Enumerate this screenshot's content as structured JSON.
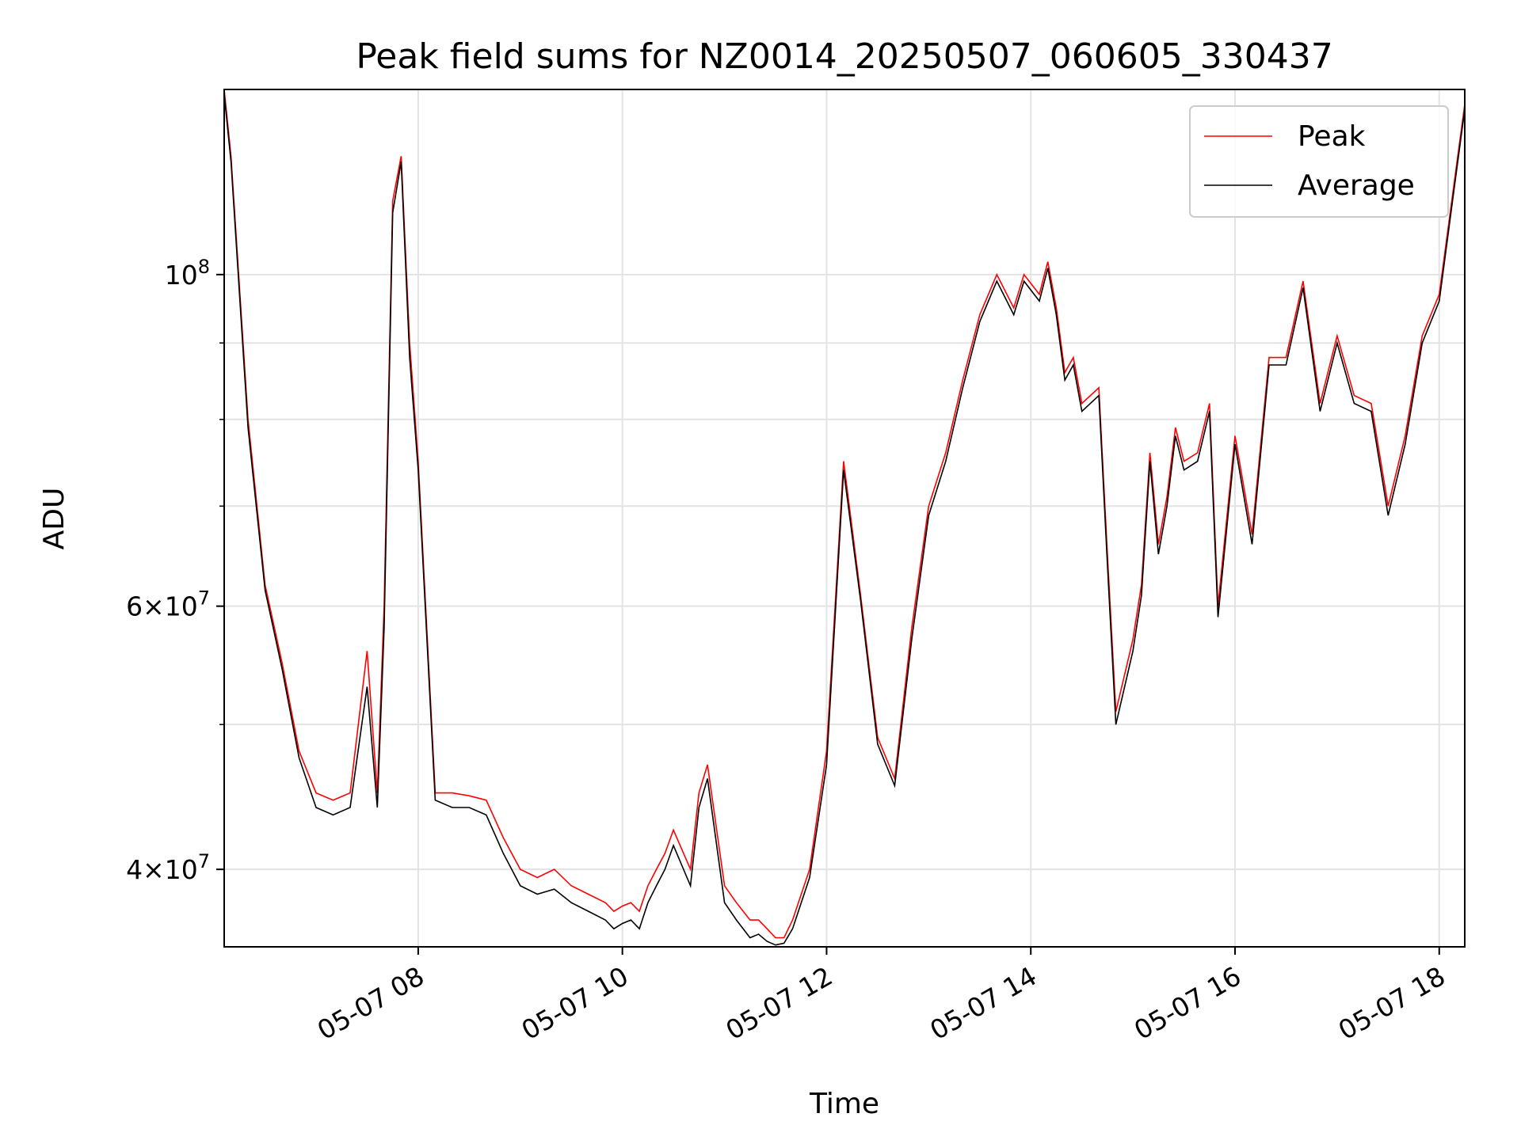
{
  "chart_data": {
    "type": "line",
    "title": "Peak field sums for NZ0014_20250507_060605_330437",
    "xlabel": "Time",
    "ylabel": "ADU",
    "yscale": "log",
    "xlim": [
      "05-07 06:06",
      "05-07 18:15"
    ],
    "ylim": [
      35500000,
      133000000
    ],
    "grid": true,
    "legend_position": "top-right",
    "x_ticks": [
      "05-07 08",
      "05-07 10",
      "05-07 12",
      "05-07 14",
      "05-07 16",
      "05-07 18"
    ],
    "y_major_ticks": [
      {
        "value": 40000000,
        "mantissa": "4",
        "exponent": "7"
      },
      {
        "value": 60000000,
        "mantissa": "6",
        "exponent": "7"
      },
      {
        "value": 100000000,
        "mantissa": "",
        "exponent": "8"
      }
    ],
    "y_minor_ticks": [
      50000000,
      70000000,
      80000000,
      90000000,
      200000000
    ],
    "x": [
      "05-07 06:06",
      "05-07 06:10",
      "05-07 06:20",
      "05-07 06:30",
      "05-07 06:40",
      "05-07 06:50",
      "05-07 07:00",
      "05-07 07:10",
      "05-07 07:20",
      "05-07 07:30",
      "05-07 07:36",
      "05-07 07:40",
      "05-07 07:45",
      "05-07 07:50",
      "05-07 07:55",
      "05-07 08:00",
      "05-07 08:10",
      "05-07 08:20",
      "05-07 08:30",
      "05-07 08:40",
      "05-07 08:50",
      "05-07 09:00",
      "05-07 09:10",
      "05-07 09:20",
      "05-07 09:30",
      "05-07 09:40",
      "05-07 09:50",
      "05-07 09:55",
      "05-07 10:00",
      "05-07 10:05",
      "05-07 10:10",
      "05-07 10:15",
      "05-07 10:20",
      "05-07 10:25",
      "05-07 10:30",
      "05-07 10:40",
      "05-07 10:45",
      "05-07 10:50",
      "05-07 11:00",
      "05-07 11:07",
      "05-07 11:15",
      "05-07 11:20",
      "05-07 11:25",
      "05-07 11:30",
      "05-07 11:35",
      "05-07 11:40",
      "05-07 11:50",
      "05-07 12:00",
      "05-07 12:10",
      "05-07 12:20",
      "05-07 12:30",
      "05-07 12:40",
      "05-07 12:50",
      "05-07 13:00",
      "05-07 13:10",
      "05-07 13:20",
      "05-07 13:30",
      "05-07 13:40",
      "05-07 13:50",
      "05-07 13:56",
      "05-07 14:05",
      "05-07 14:10",
      "05-07 14:15",
      "05-07 14:20",
      "05-07 14:25",
      "05-07 14:30",
      "05-07 14:40",
      "05-07 14:45",
      "05-07 14:50",
      "05-07 15:00",
      "05-07 15:05",
      "05-07 15:10",
      "05-07 15:15",
      "05-07 15:20",
      "05-07 15:25",
      "05-07 15:30",
      "05-07 15:38",
      "05-07 15:45",
      "05-07 15:50",
      "05-07 16:00",
      "05-07 16:10",
      "05-07 16:20",
      "05-07 16:30",
      "05-07 16:40",
      "05-07 16:50",
      "05-07 17:00",
      "05-07 17:10",
      "05-07 17:20",
      "05-07 17:30",
      "05-07 17:40",
      "05-07 17:50",
      "05-07 18:00",
      "05-07 18:10",
      "05-07 18:15"
    ],
    "series": [
      {
        "name": "Peak",
        "color": "#ff0000",
        "values": [
          133000000,
          120000000,
          80000000,
          62000000,
          55000000,
          48000000,
          45000000,
          44500000,
          45000000,
          56000000,
          45000000,
          60000000,
          112000000,
          120000000,
          90000000,
          75000000,
          45000000,
          45000000,
          44800000,
          44500000,
          42000000,
          40000000,
          39500000,
          40000000,
          39000000,
          38500000,
          38000000,
          37500000,
          37800000,
          38000000,
          37500000,
          39000000,
          40000000,
          41000000,
          42500000,
          40000000,
          45000000,
          47000000,
          39000000,
          38000000,
          37000000,
          37000000,
          36500000,
          36000000,
          36000000,
          37000000,
          40000000,
          48000000,
          75000000,
          61000000,
          49000000,
          46000000,
          58000000,
          70000000,
          76000000,
          85000000,
          94000000,
          100000000,
          95000000,
          100000000,
          97000000,
          102000000,
          95000000,
          86000000,
          88000000,
          82000000,
          84000000,
          65000000,
          51000000,
          57000000,
          62000000,
          76000000,
          66000000,
          71000000,
          79000000,
          75000000,
          76000000,
          82000000,
          60000000,
          78000000,
          67000000,
          88000000,
          88000000,
          99000000,
          82000000,
          91000000,
          83000000,
          82000000,
          70000000,
          78000000,
          91000000,
          97000000,
          118000000,
          130000000
        ]
      },
      {
        "name": "Average",
        "color": "#000000",
        "values": [
          132000000,
          119000000,
          79000000,
          61500000,
          54500000,
          47500000,
          44000000,
          43500000,
          44000000,
          53000000,
          44000000,
          58000000,
          110000000,
          119000000,
          88000000,
          74000000,
          44500000,
          44000000,
          44000000,
          43500000,
          41000000,
          39000000,
          38500000,
          38800000,
          38000000,
          37500000,
          37000000,
          36500000,
          36800000,
          37000000,
          36500000,
          38000000,
          39000000,
          40000000,
          41500000,
          39000000,
          44000000,
          46000000,
          38000000,
          37000000,
          36000000,
          36200000,
          35800000,
          35600000,
          35700000,
          36500000,
          39500000,
          47000000,
          74000000,
          60500000,
          48500000,
          45500000,
          57000000,
          69000000,
          75000000,
          84000000,
          93000000,
          99000000,
          94000000,
          99000000,
          96000000,
          101000000,
          94000000,
          85000000,
          87000000,
          81000000,
          83000000,
          64000000,
          50000000,
          56000000,
          61000000,
          75000000,
          65000000,
          70000000,
          78000000,
          74000000,
          75000000,
          81000000,
          59000000,
          77000000,
          66000000,
          87000000,
          87000000,
          98000000,
          81000000,
          90000000,
          82000000,
          81000000,
          69000000,
          77000000,
          90000000,
          96000000,
          117000000,
          129000000
        ]
      }
    ]
  }
}
